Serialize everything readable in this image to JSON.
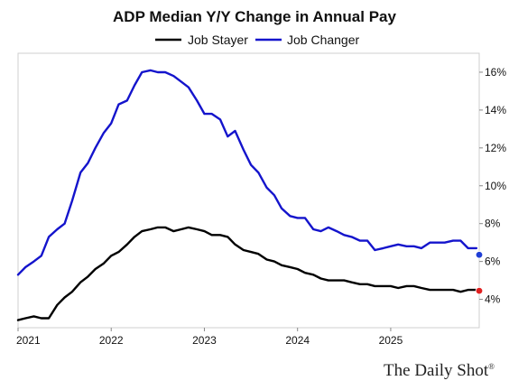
{
  "chart_data": {
    "type": "line",
    "title": "ADP Median Y/Y Change in Annual Pay",
    "xlabel": "",
    "ylabel": "",
    "x_ticks": [
      "2021",
      "2022",
      "2023",
      "2024",
      "2025"
    ],
    "y_ticks": [
      "4%",
      "6%",
      "8%",
      "10%",
      "12%",
      "14%",
      "16%"
    ],
    "ylim": [
      2.5,
      17
    ],
    "xlim": [
      2021.0,
      2025.95
    ],
    "grid": false,
    "legend": "top-center",
    "y_axis_side": "right",
    "series": [
      {
        "name": "Job Stayer",
        "color": "#000000",
        "x": [
          2021.0,
          2021.08,
          2021.17,
          2021.25,
          2021.33,
          2021.42,
          2021.5,
          2021.58,
          2021.67,
          2021.75,
          2021.83,
          2021.92,
          2022.0,
          2022.08,
          2022.17,
          2022.25,
          2022.33,
          2022.42,
          2022.5,
          2022.58,
          2022.67,
          2022.75,
          2022.83,
          2022.92,
          2023.0,
          2023.08,
          2023.17,
          2023.25,
          2023.33,
          2023.42,
          2023.5,
          2023.58,
          2023.67,
          2023.75,
          2023.83,
          2023.92,
          2024.0,
          2024.08,
          2024.17,
          2024.25,
          2024.33,
          2024.42,
          2024.5,
          2024.58,
          2024.67,
          2024.75,
          2024.83,
          2024.92,
          2025.0,
          2025.08,
          2025.17,
          2025.25,
          2025.33,
          2025.42,
          2025.5,
          2025.58,
          2025.67,
          2025.75,
          2025.83,
          2025.92
        ],
        "values": [
          2.9,
          3.0,
          3.1,
          3.0,
          3.0,
          3.7,
          4.1,
          4.4,
          4.9,
          5.2,
          5.6,
          5.9,
          6.3,
          6.5,
          6.9,
          7.3,
          7.6,
          7.7,
          7.8,
          7.8,
          7.6,
          7.7,
          7.8,
          7.7,
          7.6,
          7.4,
          7.4,
          7.3,
          6.9,
          6.6,
          6.5,
          6.4,
          6.1,
          6.0,
          5.8,
          5.7,
          5.6,
          5.4,
          5.3,
          5.1,
          5.0,
          5.0,
          5.0,
          4.9,
          4.8,
          4.8,
          4.7,
          4.7,
          4.7,
          4.6,
          4.7,
          4.7,
          4.6,
          4.5,
          4.5,
          4.5,
          4.5,
          4.4,
          4.5,
          4.5
        ]
      },
      {
        "name": "Job Changer",
        "color": "#1414cc",
        "x": [
          2021.0,
          2021.08,
          2021.17,
          2021.25,
          2021.33,
          2021.42,
          2021.5,
          2021.58,
          2021.67,
          2021.75,
          2021.83,
          2021.92,
          2022.0,
          2022.08,
          2022.17,
          2022.25,
          2022.33,
          2022.42,
          2022.5,
          2022.58,
          2022.67,
          2022.75,
          2022.83,
          2022.92,
          2023.0,
          2023.08,
          2023.17,
          2023.25,
          2023.33,
          2023.42,
          2023.5,
          2023.58,
          2023.67,
          2023.75,
          2023.83,
          2023.92,
          2024.0,
          2024.08,
          2024.17,
          2024.25,
          2024.33,
          2024.42,
          2024.5,
          2024.58,
          2024.67,
          2024.75,
          2024.83,
          2024.92,
          2025.0,
          2025.08,
          2025.17,
          2025.25,
          2025.33,
          2025.42,
          2025.5,
          2025.58,
          2025.67,
          2025.75,
          2025.83,
          2025.92
        ],
        "values": [
          5.3,
          5.7,
          6.0,
          6.3,
          7.3,
          7.7,
          8.0,
          9.2,
          10.7,
          11.2,
          12.0,
          12.8,
          13.3,
          14.3,
          14.5,
          15.3,
          16.0,
          16.1,
          16.0,
          16.0,
          15.8,
          15.5,
          15.2,
          14.5,
          13.8,
          13.8,
          13.5,
          12.6,
          12.9,
          11.9,
          11.1,
          10.7,
          9.9,
          9.5,
          8.8,
          8.4,
          8.3,
          8.3,
          7.7,
          7.6,
          7.8,
          7.6,
          7.4,
          7.3,
          7.1,
          7.1,
          6.6,
          6.7,
          6.8,
          6.9,
          6.8,
          6.8,
          6.7,
          7.0,
          7.0,
          7.0,
          7.1,
          7.1,
          6.7,
          6.7
        ]
      }
    ],
    "end_markers": [
      {
        "series": "Job Stayer",
        "x": 2025.95,
        "value": 4.45,
        "color": "#e02020"
      },
      {
        "series": "Job Changer",
        "x": 2025.95,
        "value": 6.35,
        "color": "#1f3ed6"
      }
    ]
  },
  "watermark": "The Daily Shot",
  "watermark_mark": "®"
}
